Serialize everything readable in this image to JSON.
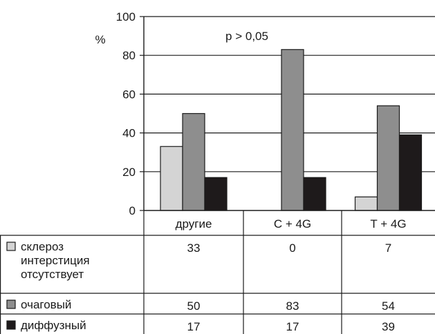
{
  "chart_data": {
    "type": "bar",
    "annotation": "p > 0,05",
    "ylabel": "%",
    "ylim": [
      0,
      100
    ],
    "yticks": [
      0,
      20,
      40,
      60,
      80,
      100
    ],
    "categories": [
      "другие",
      "C + 4G",
      "T + 4G"
    ],
    "series": [
      {
        "name": "склероз интерстиция отсутствует",
        "name_lines": [
          "склероз",
          "интерстиция",
          "отсутствует"
        ],
        "color": "#d4d4d4",
        "values": [
          33,
          0,
          7
        ],
        "labels": [
          "33",
          "0",
          "7"
        ]
      },
      {
        "name": "очаговый",
        "name_lines": [
          "очаговый"
        ],
        "color": "#8e8e8e",
        "values": [
          50,
          83,
          54
        ],
        "labels": [
          "50",
          "83",
          "54"
        ]
      },
      {
        "name": "диффузный",
        "name_lines": [
          "диффузный"
        ],
        "color": "#1e1a1b",
        "values": [
          17,
          17,
          39
        ],
        "labels": [
          "17",
          "17",
          "39"
        ]
      }
    ],
    "grid": "horizontal",
    "legend": "table-left"
  }
}
